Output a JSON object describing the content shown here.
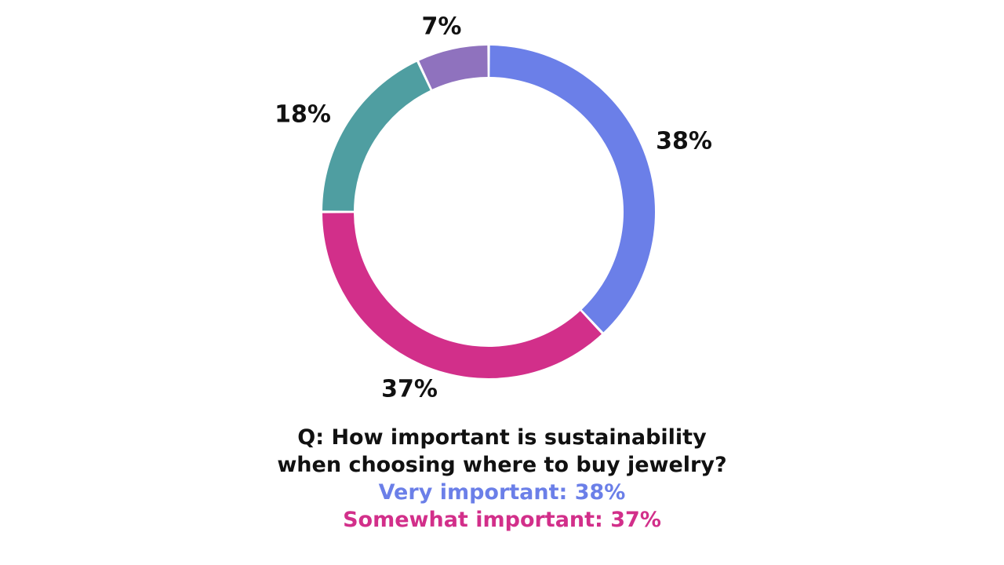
{
  "chart_data": {
    "type": "pie",
    "title": "",
    "slices": [
      {
        "value": 38,
        "label": "38%",
        "color": "#6b7fe8"
      },
      {
        "value": 37,
        "label": "37%",
        "color": "#d22f8a"
      },
      {
        "value": 18,
        "label": "18%",
        "color": "#4f9ea1"
      },
      {
        "value": 7,
        "label": "7%",
        "color": "#8f72be"
      }
    ],
    "donut": true,
    "legend": "none"
  },
  "caption": {
    "question_line1": "Q: How important is sustainability",
    "question_line2": "when choosing where to buy jewelry?",
    "very_important": "Very important: 38%",
    "very_important_color": "#6b7fe8",
    "somewhat_important": "Somewhat important: 37%",
    "somewhat_important_color": "#d22f8a"
  }
}
